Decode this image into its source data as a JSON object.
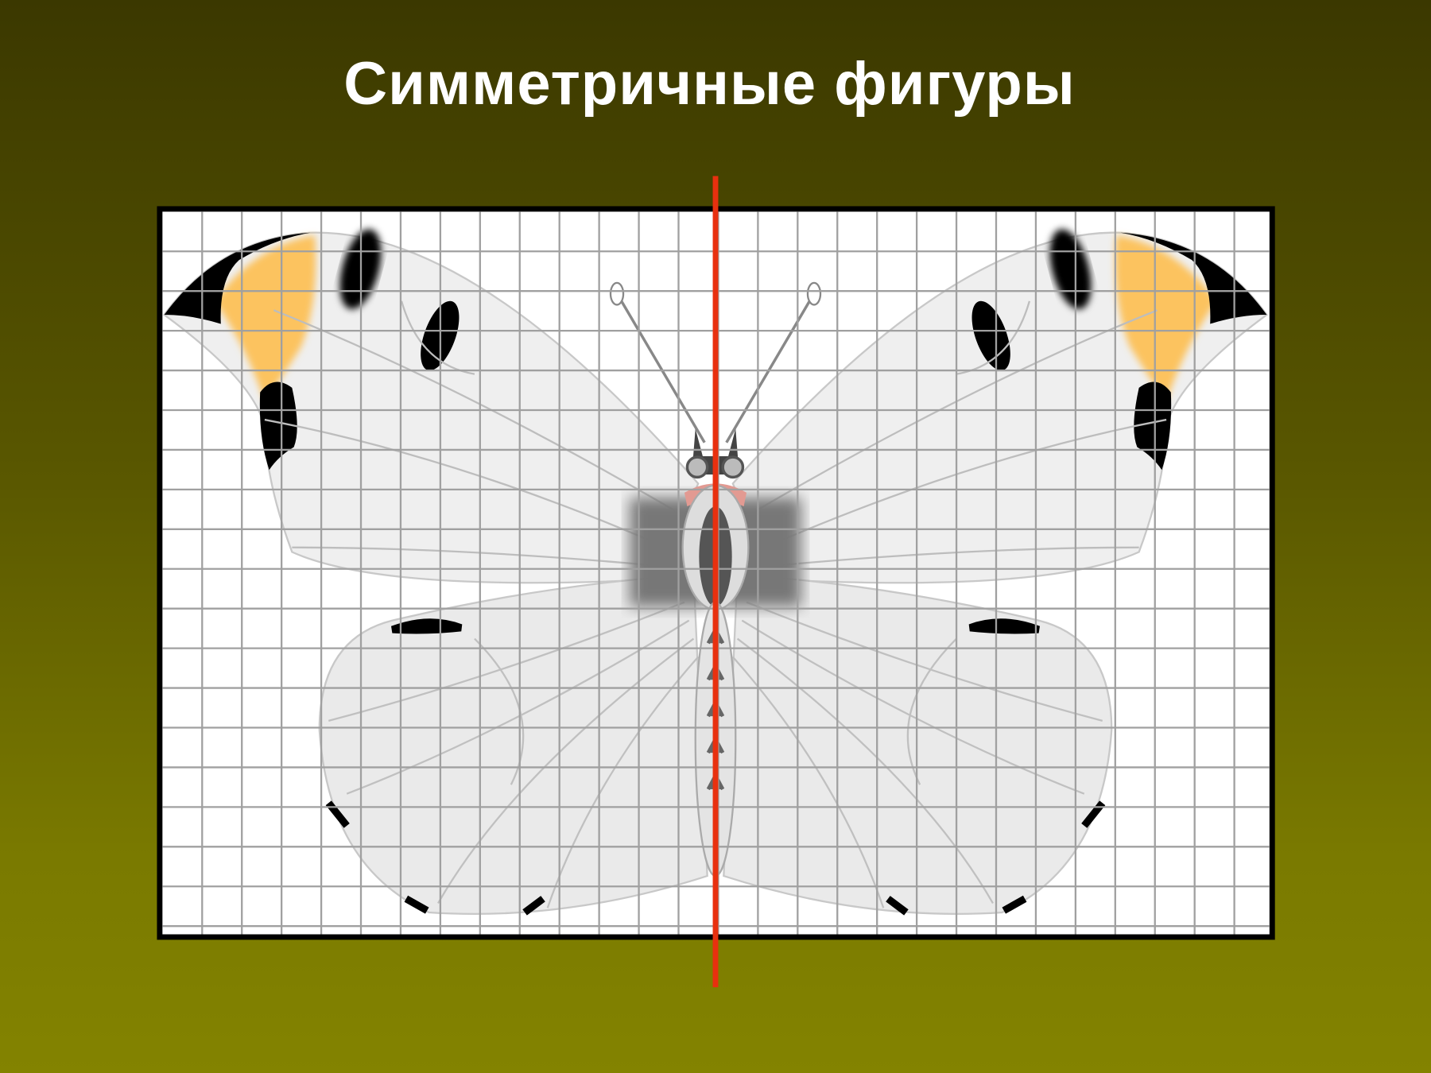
{
  "title": "Симметричные фигуры",
  "colors": {
    "background_top": "#3b3800",
    "background_bottom": "#838300",
    "axis_of_symmetry": "#e8300f",
    "grid_line": "#a0a0a0",
    "wing_fill": "#efefef",
    "wing_tip_orange": "#fcc35e"
  },
  "figure": {
    "subject": "butterfly",
    "symmetry": "vertical axis"
  }
}
